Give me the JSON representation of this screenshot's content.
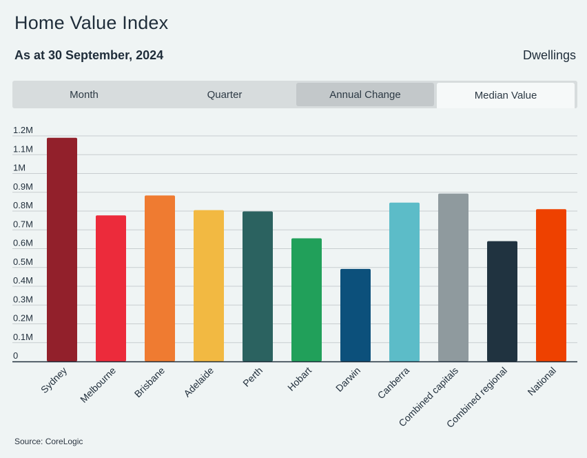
{
  "header": {
    "title": "Home Value Index",
    "subtitle": "As at 30 September, 2024",
    "category": "Dwellings"
  },
  "tabs": [
    {
      "label": "Month",
      "state": "normal"
    },
    {
      "label": "Quarter",
      "state": "normal"
    },
    {
      "label": "Annual Change",
      "state": "hover"
    },
    {
      "label": "Median Value",
      "state": "active"
    }
  ],
  "footer": {
    "source": "Source: CoreLogic"
  },
  "chart_data": {
    "type": "bar",
    "title": "",
    "xlabel": "",
    "ylabel": "",
    "ylim": [
      0,
      1200000
    ],
    "grid": true,
    "yticks": [
      {
        "value": 0,
        "label": "0"
      },
      {
        "value": 100000,
        "label": "0.1M"
      },
      {
        "value": 200000,
        "label": "0.2M"
      },
      {
        "value": 300000,
        "label": "0.3M"
      },
      {
        "value": 400000,
        "label": "0.4M"
      },
      {
        "value": 500000,
        "label": "0.5M"
      },
      {
        "value": 600000,
        "label": "0.6M"
      },
      {
        "value": 700000,
        "label": "0.7M"
      },
      {
        "value": 800000,
        "label": "0.8M"
      },
      {
        "value": 900000,
        "label": "0.9M"
      },
      {
        "value": 1000000,
        "label": "1M"
      },
      {
        "value": 1100000,
        "label": "1.1M"
      },
      {
        "value": 1200000,
        "label": "1.2M"
      }
    ],
    "categories": [
      "Sydney",
      "Melbourne",
      "Brisbane",
      "Adelaide",
      "Perth",
      "Hobart",
      "Darwin",
      "Canberra",
      "Combined capitals",
      "Combined regional",
      "National"
    ],
    "values": [
      1190000,
      777000,
      883000,
      805000,
      798000,
      655000,
      492000,
      845000,
      893000,
      640000,
      810000
    ],
    "colors": [
      "#92202b",
      "#ec2b3b",
      "#ef7b31",
      "#f2b942",
      "#2b6260",
      "#21a05a",
      "#0c507b",
      "#5cbcc8",
      "#8f9a9e",
      "#203340",
      "#ee4100"
    ]
  }
}
